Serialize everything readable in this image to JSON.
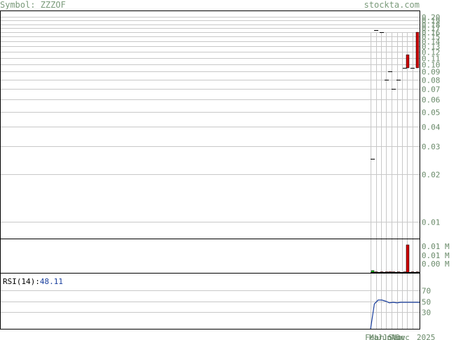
{
  "header": {
    "symbol_label": "Symbol:",
    "symbol": "ZZZOF",
    "brand": "stockta.com"
  },
  "chart_data": {
    "type": "bar",
    "price_panel": {
      "y_scale": "log",
      "ylim": [
        0.0078,
        0.22
      ],
      "y_ticks": [
        "0.20",
        "0.19",
        "0.18",
        "0.17",
        "0.16",
        "0.15",
        "0.14",
        "0.13",
        "0.12",
        "0.11",
        "0.10",
        "0.09",
        "0.08",
        "0.07",
        "0.06",
        "0.05",
        "0.04",
        "0.03",
        "0.02",
        "0.01"
      ],
      "grid": true,
      "bars": [
        {
          "kind": "tick",
          "price": 0.025
        },
        {
          "kind": "tick",
          "price": 0.165
        },
        {
          "kind": "tick",
          "price": 0.16
        },
        {
          "kind": "tick",
          "price": 0.08
        },
        {
          "kind": "tick",
          "price": 0.09
        },
        {
          "kind": "tick",
          "price": 0.07
        },
        {
          "kind": "tick",
          "price": 0.08
        },
        {
          "kind": "tick",
          "price": 0.095
        },
        {
          "kind": "candle",
          "open": 0.095,
          "close": 0.115,
          "color": "#cc0000"
        },
        {
          "kind": "tick",
          "price": 0.095
        },
        {
          "kind": "candle",
          "open": 0.095,
          "close": 0.16,
          "color": "#cc0000"
        }
      ]
    },
    "volume_panel": {
      "y_ticks": [
        "0.01 M",
        "0.01 M",
        "0.00 M"
      ],
      "bars": [
        {
          "value": 0.0008,
          "color": "#00aa00"
        },
        {
          "value": 0.0003,
          "color": "#cc0000"
        },
        {
          "value": 0.0003,
          "color": "#cc0000"
        },
        {
          "value": 0.0003,
          "color": "#cc0000"
        },
        {
          "value": 0.0004,
          "color": "#cc0000"
        },
        {
          "value": 0.0003,
          "color": "#cc0000"
        },
        {
          "value": 0.0003,
          "color": "#cc0000"
        },
        {
          "value": 0.0003,
          "color": "#cc0000"
        },
        {
          "value": 0.01,
          "color": "#cc0000"
        },
        {
          "value": 0.0003,
          "color": "#cc0000"
        },
        {
          "value": 0.0003,
          "color": "#cc0000"
        }
      ]
    },
    "rsi_panel": {
      "label": "RSI(14):",
      "value": "48.11",
      "y_ticks": [
        "70",
        "50",
        "30"
      ],
      "ylim": [
        0,
        100
      ],
      "series": [
        0,
        45,
        52,
        52,
        50,
        47,
        48,
        47,
        48,
        48,
        48,
        48,
        48,
        48
      ]
    },
    "x_labels": [
      "Feb",
      "Mar",
      "Jun",
      "Jul",
      "Sep",
      "Nov",
      "Dec",
      "2025"
    ]
  }
}
